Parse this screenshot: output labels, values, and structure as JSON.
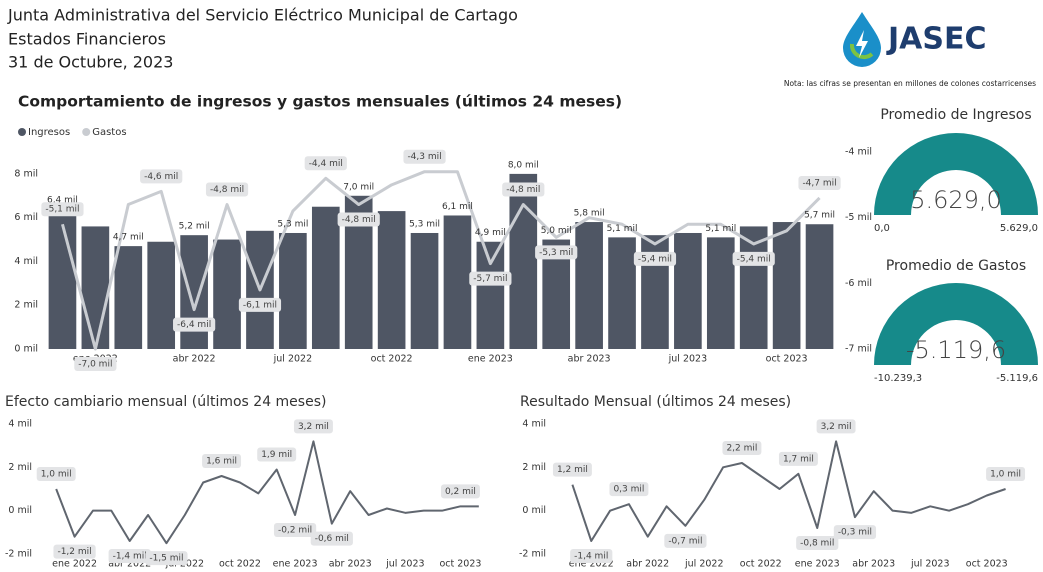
{
  "header": {
    "title": "Junta Administrativa del Servicio Eléctrico Municipal de Cartago",
    "subtitle": "Estados Financieros",
    "date": "31 de Octubre, 2023",
    "logo": "JASEC",
    "note": "Nota: las cifras se presentan en millones de colones costarricenses"
  },
  "chart_data": [
    {
      "type": "combo",
      "title": "Comportamiento de ingresos y gastos mensuales (últimos 24 meses)",
      "categories": [
        null,
        "ene 2022",
        null,
        null,
        "abr 2022",
        null,
        null,
        "jul 2022",
        null,
        null,
        "oct 2022",
        null,
        null,
        "ene 2023",
        null,
        null,
        "abr 2023",
        null,
        null,
        "jul 2023",
        null,
        null,
        "oct 2023",
        null
      ],
      "series": [
        {
          "name": "Ingresos",
          "type": "bar",
          "color": "#4f5664",
          "values": [
            6.4,
            5.6,
            4.7,
            4.9,
            5.2,
            5.0,
            5.4,
            5.3,
            6.5,
            7.0,
            6.3,
            5.3,
            6.1,
            4.9,
            8.0,
            5.0,
            5.8,
            5.1,
            5.2,
            5.3,
            5.1,
            5.6,
            5.8,
            5.7
          ],
          "value_labels": [
            "6,4 mil",
            null,
            "4,7 mil",
            null,
            "5,2 mil",
            null,
            null,
            "5,3 mil",
            null,
            "7,0 mil",
            null,
            "5,3 mil",
            "6,1 mil",
            "4,9 mil",
            "8,0 mil",
            "5,0 mil",
            "5,8 mil",
            "5,1 mil",
            null,
            null,
            "5,1 mil",
            null,
            null,
            "5,7 mil"
          ]
        },
        {
          "name": "Gastos",
          "type": "line",
          "axis": "y2",
          "color": "#c9ccd1",
          "values": [
            -5.1,
            -7.0,
            -4.8,
            -4.6,
            -6.4,
            -4.8,
            -6.1,
            -4.9,
            -4.4,
            -4.8,
            -4.5,
            -4.3,
            -4.3,
            -5.7,
            -4.8,
            -5.3,
            -5.0,
            -5.1,
            -5.4,
            -5.1,
            -5.1,
            -5.4,
            -5.2,
            -4.7
          ],
          "value_labels": [
            "-5,1 mil",
            "-7,0 mil",
            null,
            "-4,6 mil",
            "-6,4 mil",
            "-4,8 mil",
            "-6,1 mil",
            null,
            "-4,4 mil",
            "-4,8 mil",
            null,
            "-4,3 mil",
            null,
            "-5,7 mil",
            "-4,8 mil",
            "-5,3 mil",
            null,
            null,
            "-5,4 mil",
            null,
            null,
            "-5,4 mil",
            null,
            "-4,7 mil"
          ]
        }
      ],
      "ylim": [
        0,
        9
      ],
      "yticks": [
        {
          "value": 0,
          "label": "0 mil"
        },
        {
          "value": 2,
          "label": "2 mil"
        },
        {
          "value": 4,
          "label": "4 mil"
        },
        {
          "value": 6,
          "label": "6 mil"
        },
        {
          "value": 8,
          "label": "8 mil"
        }
      ],
      "y2lim": [
        -7,
        -4
      ],
      "y2ticks": [
        {
          "value": -4,
          "label": "-4 mil"
        },
        {
          "value": -5,
          "label": "-5 mil"
        },
        {
          "value": -6,
          "label": "-6 mil"
        },
        {
          "value": -7,
          "label": "-7 mil"
        }
      ],
      "grid": false,
      "legend": "top-left"
    },
    {
      "type": "gauge",
      "title": "Promedio de Ingresos",
      "value": 5629.0,
      "value_label": "5.629,0",
      "min": 0,
      "min_label": "0,0",
      "max": 5629.0,
      "max_label": "5.629,0",
      "color": "#168a8a"
    },
    {
      "type": "gauge",
      "title": "Promedio de Gastos",
      "value": -5119.6,
      "value_label": "-5.119,6",
      "min": -10239.3,
      "min_label": "-10.239,3",
      "max": -5119.6,
      "max_label": "-5.119,6",
      "color": "#168a8a"
    },
    {
      "type": "line",
      "title": "Efecto cambiario mensual (últimos 24 meses)",
      "categories": [
        null,
        "ene 2022",
        null,
        null,
        "abr 2022",
        null,
        null,
        "jul 2022",
        null,
        null,
        "oct 2022",
        null,
        null,
        "ene 2023",
        null,
        null,
        "abr 2023",
        null,
        null,
        "jul 2023",
        null,
        null,
        "oct 2023",
        null
      ],
      "values": [
        1.0,
        -1.2,
        0.0,
        0.0,
        -1.4,
        -0.2,
        -1.5,
        -0.2,
        1.3,
        1.6,
        1.3,
        0.8,
        1.9,
        -0.2,
        3.2,
        -0.6,
        0.9,
        -0.2,
        0.1,
        -0.1,
        0.0,
        0.0,
        0.2,
        0.2
      ],
      "value_labels": [
        "1,0 mil",
        "-1,2 mil",
        null,
        null,
        "-1,4 mil",
        null,
        "-1,5 mil",
        null,
        null,
        "1,6 mil",
        null,
        null,
        "1,9 mil",
        "-0,2 mil",
        "3,2 mil",
        "-0,6 mil",
        null,
        null,
        null,
        null,
        null,
        null,
        "0,2 mil",
        null
      ],
      "color": "#60666f",
      "ylim": [
        -2,
        4
      ],
      "yticks": [
        {
          "value": -2,
          "label": "-2 mil"
        },
        {
          "value": 0,
          "label": "0 mil"
        },
        {
          "value": 2,
          "label": "2 mil"
        },
        {
          "value": 4,
          "label": "4 mil"
        }
      ],
      "grid": false
    },
    {
      "type": "line",
      "title": "Resultado Mensual (últimos 24 meses)",
      "categories": [
        null,
        "ene 2022",
        null,
        null,
        "abr 2022",
        null,
        null,
        "jul 2022",
        null,
        null,
        "oct 2022",
        null,
        null,
        "ene 2023",
        null,
        null,
        "abr 2023",
        null,
        null,
        "jul 2023",
        null,
        null,
        "oct 2023",
        null
      ],
      "values": [
        1.2,
        -1.4,
        0.0,
        0.3,
        -1.2,
        0.2,
        -0.7,
        0.5,
        2.0,
        2.2,
        1.6,
        1.0,
        1.7,
        -0.8,
        3.2,
        -0.3,
        0.9,
        0.0,
        -0.1,
        0.2,
        0.0,
        0.3,
        0.7,
        1.0
      ],
      "value_labels": [
        "1,2 mil",
        "-1,4 mil",
        null,
        "0,3 mil",
        null,
        null,
        "-0,7 mil",
        null,
        null,
        "2,2 mil",
        null,
        null,
        "1,7 mil",
        "-0,8 mil",
        "3,2 mil",
        "-0,3 mil",
        null,
        null,
        null,
        null,
        null,
        null,
        null,
        "1,0 mil"
      ],
      "color": "#60666f",
      "ylim": [
        -2,
        4
      ],
      "yticks": [
        {
          "value": -2,
          "label": "-2 mil"
        },
        {
          "value": 0,
          "label": "0 mil"
        },
        {
          "value": 2,
          "label": "2 mil"
        },
        {
          "value": 4,
          "label": "4 mil"
        }
      ],
      "grid": false
    }
  ]
}
